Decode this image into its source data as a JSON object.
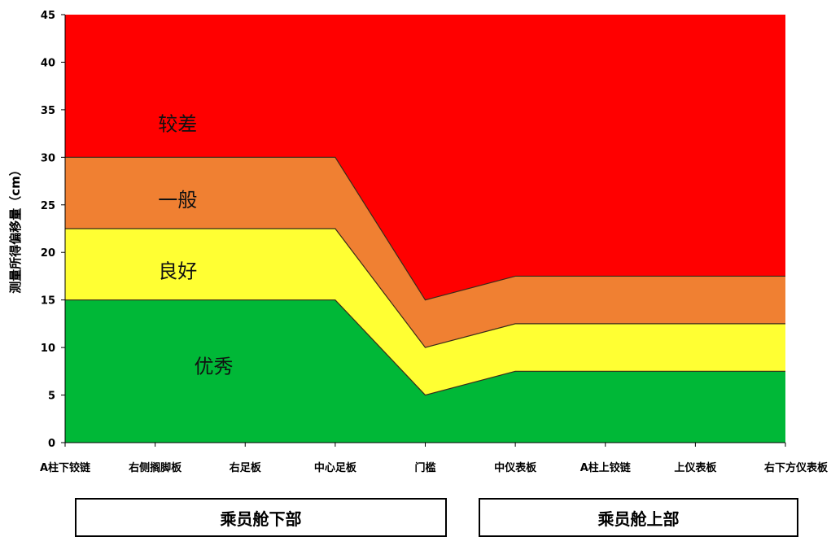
{
  "chart_data": {
    "type": "area",
    "categories": [
      "A柱下铰链",
      "右侧搁脚板",
      "右足板",
      "中心足板",
      "门槛",
      "中仪表板",
      "A柱上铰链",
      "上仪表板",
      "右下方仪表板"
    ],
    "x_positions": [
      0,
      1,
      2,
      3,
      4,
      5,
      6,
      7,
      8
    ],
    "boundaries": {
      "excellent_upper": [
        15,
        15,
        15,
        15,
        5,
        7.5,
        7.5,
        7.5,
        7.5
      ],
      "good_upper": [
        22.5,
        22.5,
        22.5,
        22.5,
        10,
        12.5,
        12.5,
        12.5,
        12.5
      ],
      "average_upper": [
        30,
        30,
        30,
        30,
        15,
        17.5,
        17.5,
        17.5,
        17.5
      ],
      "poor_upper": [
        45,
        45,
        45,
        45,
        45,
        45,
        45,
        45,
        45
      ]
    },
    "series": [
      {
        "name": "优秀",
        "color": "#00b837"
      },
      {
        "name": "良好",
        "color": "#ffff33"
      },
      {
        "name": "一般",
        "color": "#f08032"
      },
      {
        "name": "较差",
        "color": "#ff0000"
      }
    ],
    "ylabel": "测量所得偏移量（cm）",
    "ylim": [
      0,
      45
    ],
    "yticks": [
      0,
      5,
      10,
      15,
      20,
      25,
      30,
      35,
      40,
      45
    ],
    "grid": false,
    "groups": [
      {
        "label": "乘员舱下部"
      },
      {
        "label": "乘员舱上部"
      }
    ]
  }
}
